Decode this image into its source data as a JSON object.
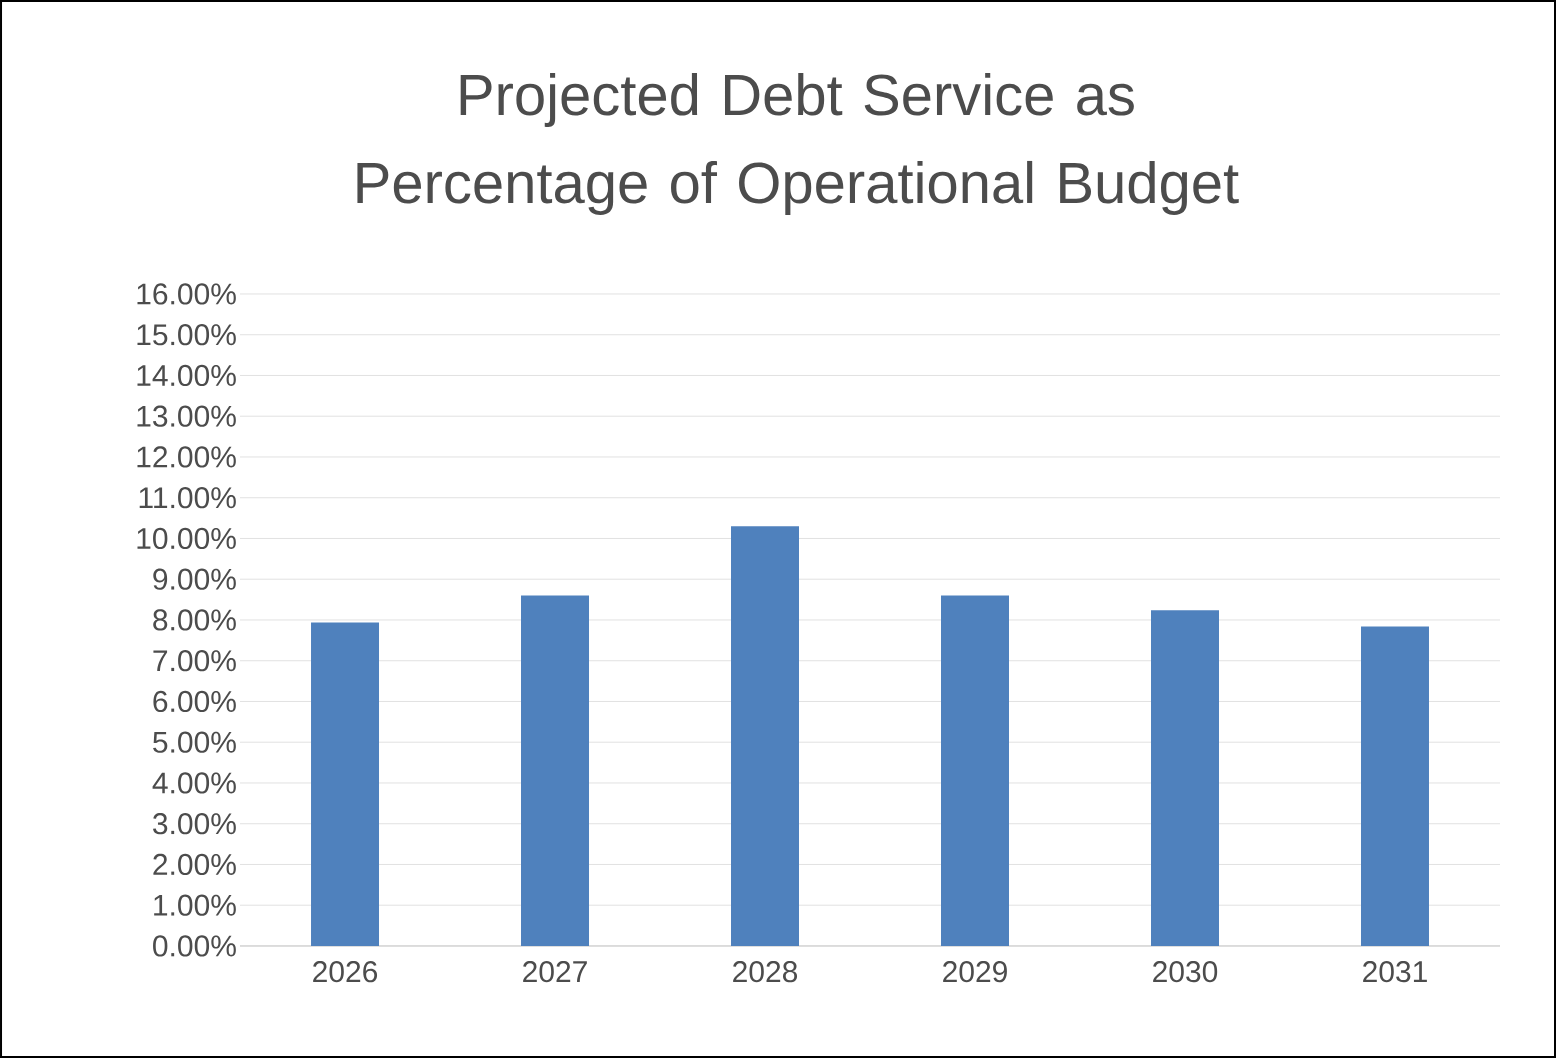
{
  "chart_data": {
    "type": "bar",
    "title": "Projected Debt Service as Percentage of Operational Budget",
    "categories": [
      "2026",
      "2027",
      "2028",
      "2029",
      "2030",
      "2031"
    ],
    "values": [
      7.94,
      8.6,
      10.3,
      8.6,
      8.24,
      7.84
    ],
    "color": "#4f81bd",
    "ylim": [
      0,
      16
    ],
    "yticks": [
      {
        "value": 0,
        "label": "0.00%"
      },
      {
        "value": 1,
        "label": "1.00%"
      },
      {
        "value": 2,
        "label": "2.00%"
      },
      {
        "value": 3,
        "label": "3.00%"
      },
      {
        "value": 4,
        "label": "4.00%"
      },
      {
        "value": 5,
        "label": "5.00%"
      },
      {
        "value": 6,
        "label": "6.00%"
      },
      {
        "value": 7,
        "label": "7.00%"
      },
      {
        "value": 8,
        "label": "8.00%"
      },
      {
        "value": 9,
        "label": "9.00%"
      },
      {
        "value": 10,
        "label": "10.00%"
      },
      {
        "value": 11,
        "label": "11.00%"
      },
      {
        "value": 12,
        "label": "12.00%"
      },
      {
        "value": 13,
        "label": "13.00%"
      },
      {
        "value": 14,
        "label": "14.00%"
      },
      {
        "value": 15,
        "label": "15.00%"
      },
      {
        "value": 16,
        "label": "16.00%"
      }
    ],
    "grid": "y"
  }
}
